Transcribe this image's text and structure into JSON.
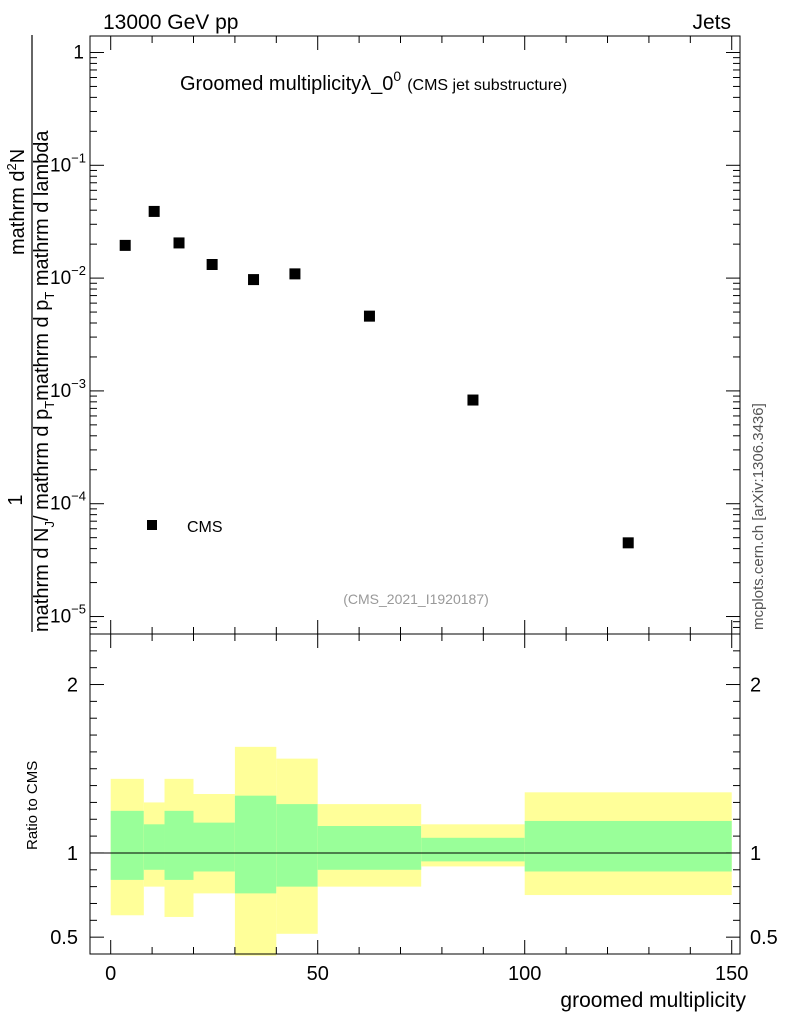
{
  "header": {
    "left": "13000 GeV pp",
    "right": "Jets"
  },
  "title": {
    "main": "Groomed multiplicity",
    "lambda": "λ_0",
    "sup": "0",
    "sub": "(CMS jet substructure)"
  },
  "side_label": "mcplots.cern.ch [arXiv:1306.3436]",
  "analysis_id": "(CMS_2021_I1920187)",
  "legend": {
    "label": "CMS"
  },
  "ylabel_top": {
    "numerator": "1",
    "numerator_expr": "mathrm d",
    "numerator_sup": "2",
    "numerator_n": "N",
    "denominator_text": "mathrm d N",
    "denominator_sub": "J",
    "denominator_rest": "/ mathrm d p",
    "denominator_rest_sub": "T",
    "middle": "mathrm d p",
    "middle_sub": "T",
    "middle_rest": " mathrm d lambda"
  },
  "ylabel_bottom": "Ratio to CMS",
  "xlabel": "groomed multiplicity",
  "colors": {
    "marker": "#000000",
    "band_outer": "#ffff99",
    "band_inner": "#99ff99"
  },
  "chart_data": [
    {
      "type": "scatter",
      "yscale": "log",
      "ylim": [
        7e-06,
        1.4
      ],
      "xlim": [
        -5,
        152
      ],
      "ytick_labels": [
        {
          "base": "1",
          "exp": ""
        },
        {
          "base": "10",
          "exp": "−1"
        },
        {
          "base": "10",
          "exp": "−2"
        },
        {
          "base": "10",
          "exp": "−3"
        },
        {
          "base": "10",
          "exp": "−4"
        },
        {
          "base": "10",
          "exp": "−5"
        }
      ],
      "ytick_values": [
        1,
        0.1,
        0.01,
        0.001,
        0.0001,
        1e-05
      ],
      "series": [
        {
          "name": "CMS",
          "x": [
            3.5,
            10.5,
            16.5,
            24.5,
            34.5,
            44.5,
            62.5,
            87.5,
            125
          ],
          "y": [
            0.0195,
            0.039,
            0.0205,
            0.0132,
            0.0097,
            0.0109,
            0.0046,
            0.00083,
            4.5e-05
          ]
        }
      ]
    },
    {
      "type": "area",
      "ylim": [
        0.4,
        2.3
      ],
      "xlim": [
        -5,
        152
      ],
      "yticks": [
        0.5,
        1,
        2
      ],
      "ytick_labels": [
        "0.5",
        "1",
        "2"
      ],
      "xticks": [
        0,
        50,
        100,
        150
      ],
      "xtick_labels": [
        "0",
        "50",
        "100",
        "150"
      ],
      "bins": [
        {
          "x0": 0,
          "x1": 8,
          "inner": [
            0.84,
            1.25
          ],
          "outer": [
            0.63,
            1.44
          ]
        },
        {
          "x0": 8,
          "x1": 13,
          "inner": [
            0.9,
            1.17
          ],
          "outer": [
            0.8,
            1.3
          ]
        },
        {
          "x0": 13,
          "x1": 20,
          "inner": [
            0.84,
            1.25
          ],
          "outer": [
            0.62,
            1.44
          ]
        },
        {
          "x0": 20,
          "x1": 30,
          "inner": [
            0.89,
            1.18
          ],
          "outer": [
            0.76,
            1.35
          ]
        },
        {
          "x0": 30,
          "x1": 40,
          "inner": [
            0.76,
            1.34
          ],
          "outer": [
            0.39,
            1.63
          ]
        },
        {
          "x0": 40,
          "x1": 50,
          "inner": [
            0.8,
            1.29
          ],
          "outer": [
            0.52,
            1.56
          ]
        },
        {
          "x0": 50,
          "x1": 75,
          "inner": [
            0.9,
            1.16
          ],
          "outer": [
            0.8,
            1.29
          ]
        },
        {
          "x0": 75,
          "x1": 100,
          "inner": [
            0.95,
            1.09
          ],
          "outer": [
            0.92,
            1.17
          ]
        },
        {
          "x0": 100,
          "x1": 150,
          "inner": [
            0.89,
            1.19
          ],
          "outer": [
            0.75,
            1.36
          ]
        }
      ],
      "reference_line": 1
    }
  ]
}
